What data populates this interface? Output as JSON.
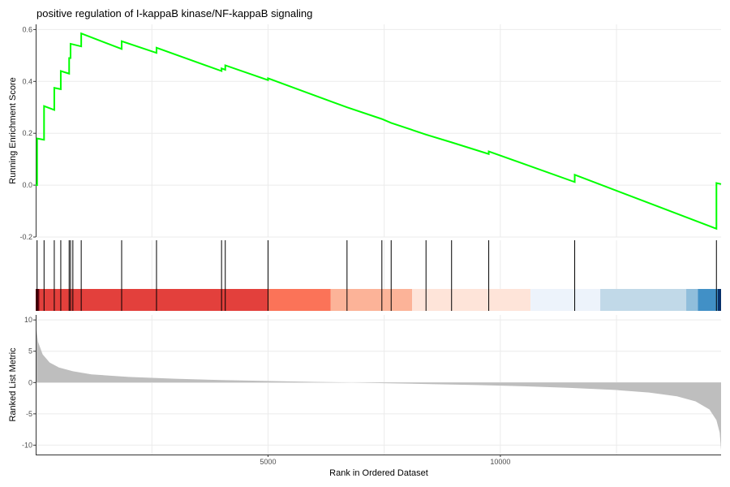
{
  "chart_data": {
    "type": "line",
    "title": "positive regulation of I-kappaB kinase/NF-kappaB signaling",
    "xlabel": "Rank in Ordered Dataset",
    "xlim": [
      0,
      14750
    ],
    "x_ticks": [
      5000,
      10000
    ],
    "x_tick_labels": [
      "5000",
      "10000"
    ],
    "grid": true,
    "panels": [
      {
        "name": "enrichment",
        "ylabel": "Running Enrichment Score",
        "ylim": [
          -0.2,
          0.62
        ],
        "y_ticks": [
          -0.2,
          0.0,
          0.2,
          0.4,
          0.6
        ],
        "y_tick_labels": [
          "-0.2",
          "0.0",
          "0.2",
          "0.4",
          "0.6"
        ],
        "line_color": "#00ff00",
        "hits": [
          30,
          180,
          400,
          540,
          720,
          750,
          800,
          980,
          1850,
          2600,
          4000,
          4080,
          5000,
          6700,
          7450,
          7650,
          8400,
          8950,
          9750,
          11600,
          14650
        ],
        "points": [
          [
            0,
            0
          ],
          [
            30,
            0
          ],
          [
            30,
            0.18
          ],
          [
            180,
            0.175
          ],
          [
            180,
            0.305
          ],
          [
            400,
            0.29
          ],
          [
            400,
            0.375
          ],
          [
            540,
            0.37
          ],
          [
            540,
            0.44
          ],
          [
            720,
            0.43
          ],
          [
            720,
            0.49
          ],
          [
            750,
            0.49
          ],
          [
            750,
            0.545
          ],
          [
            980,
            0.535
          ],
          [
            980,
            0.585
          ],
          [
            1850,
            0.525
          ],
          [
            1850,
            0.555
          ],
          [
            2600,
            0.51
          ],
          [
            2600,
            0.53
          ],
          [
            4000,
            0.44
          ],
          [
            4000,
            0.45
          ],
          [
            4080,
            0.445
          ],
          [
            4080,
            0.462
          ],
          [
            5000,
            0.405
          ],
          [
            5000,
            0.412
          ],
          [
            6700,
            0.3
          ],
          [
            7450,
            0.255
          ],
          [
            7650,
            0.24
          ],
          [
            8400,
            0.195
          ],
          [
            8950,
            0.165
          ],
          [
            9750,
            0.12
          ],
          [
            9750,
            0.13
          ],
          [
            11600,
            0.012
          ],
          [
            11600,
            0.04
          ],
          [
            14650,
            -0.168
          ],
          [
            14650,
            0.008
          ],
          [
            14750,
            0.004
          ]
        ]
      },
      {
        "name": "color-bar",
        "segments": [
          {
            "start": 0,
            "end": 80,
            "color": "#67000d"
          },
          {
            "start": 80,
            "end": 5000,
            "color": "#e3403c"
          },
          {
            "start": 5000,
            "end": 6350,
            "color": "#fb7358"
          },
          {
            "start": 6350,
            "end": 8100,
            "color": "#fcb398"
          },
          {
            "start": 8100,
            "end": 10650,
            "color": "#fee4d9"
          },
          {
            "start": 10650,
            "end": 12150,
            "color": "#edf3fb"
          },
          {
            "start": 12150,
            "end": 14000,
            "color": "#c1d9e8"
          },
          {
            "start": 14000,
            "end": 14250,
            "color": "#90bedb"
          },
          {
            "start": 14250,
            "end": 14680,
            "color": "#4190c6"
          },
          {
            "start": 14680,
            "end": 14750,
            "color": "#08306b"
          }
        ]
      },
      {
        "name": "ranked-metric",
        "type": "area",
        "ylabel": "Ranked List Metric",
        "ylim": [
          -11.5,
          10.8
        ],
        "y_ticks": [
          -10,
          -5,
          0,
          5,
          10
        ],
        "y_tick_labels": [
          "-10",
          "-5",
          "0",
          "5",
          "10"
        ],
        "fill_color": "#bebebe",
        "points": [
          [
            0,
            9.5
          ],
          [
            50,
            6.5
          ],
          [
            150,
            4.5
          ],
          [
            300,
            3.2
          ],
          [
            500,
            2.4
          ],
          [
            800,
            1.8
          ],
          [
            1200,
            1.3
          ],
          [
            2000,
            0.9
          ],
          [
            3000,
            0.6
          ],
          [
            4000,
            0.4
          ],
          [
            5000,
            0.25
          ],
          [
            6000,
            0.1
          ],
          [
            6800,
            0.0
          ],
          [
            7500,
            -0.1
          ],
          [
            8500,
            -0.25
          ],
          [
            9500,
            -0.4
          ],
          [
            10500,
            -0.6
          ],
          [
            11500,
            -0.85
          ],
          [
            12500,
            -1.2
          ],
          [
            13200,
            -1.6
          ],
          [
            13800,
            -2.2
          ],
          [
            14200,
            -3.0
          ],
          [
            14500,
            -4.3
          ],
          [
            14650,
            -6.0
          ],
          [
            14720,
            -8.0
          ],
          [
            14750,
            -10.8
          ]
        ]
      }
    ]
  }
}
